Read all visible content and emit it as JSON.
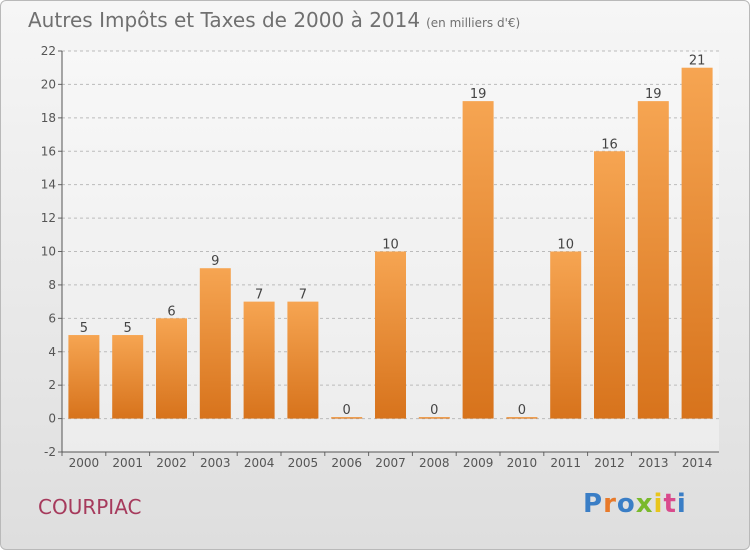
{
  "title": {
    "main": "Autres Impôts et Taxes de 2000 à 2014",
    "sub": "(en milliers d'€)"
  },
  "commune": "COURPIAC",
  "logo": {
    "text": "Proxiti",
    "letter_colors": [
      "#3a7ec6",
      "#e87a2a",
      "#3a7ec6",
      "#7ab92c",
      "#e8c51c",
      "#d94a8c",
      "#3a7ec6"
    ]
  },
  "colors": {
    "bar_light": "#f6a552",
    "bar_dark": "#d7731c",
    "axis_text": "#555555",
    "grid": "#bbbbbb"
  },
  "chart_data": {
    "type": "bar",
    "categories": [
      "2000",
      "2001",
      "2002",
      "2003",
      "2004",
      "2005",
      "2006",
      "2007",
      "2008",
      "2009",
      "2010",
      "2011",
      "2012",
      "2013",
      "2014"
    ],
    "values": [
      5,
      5,
      6,
      9,
      7,
      7,
      0,
      10,
      0,
      19,
      0,
      10,
      16,
      19,
      21
    ],
    "data_labels": [
      "5",
      "5",
      "6",
      "9",
      "7",
      "7",
      "0",
      "10",
      "0",
      "19",
      "0",
      "10",
      "16",
      "19",
      "21"
    ],
    "title": "Autres Impôts et Taxes de 2000 à 2014",
    "ylim": [
      -2,
      22
    ],
    "yticks": [
      -2,
      0,
      2,
      4,
      6,
      8,
      10,
      12,
      14,
      16,
      18,
      20,
      22
    ],
    "grid": true,
    "legend": "none"
  }
}
